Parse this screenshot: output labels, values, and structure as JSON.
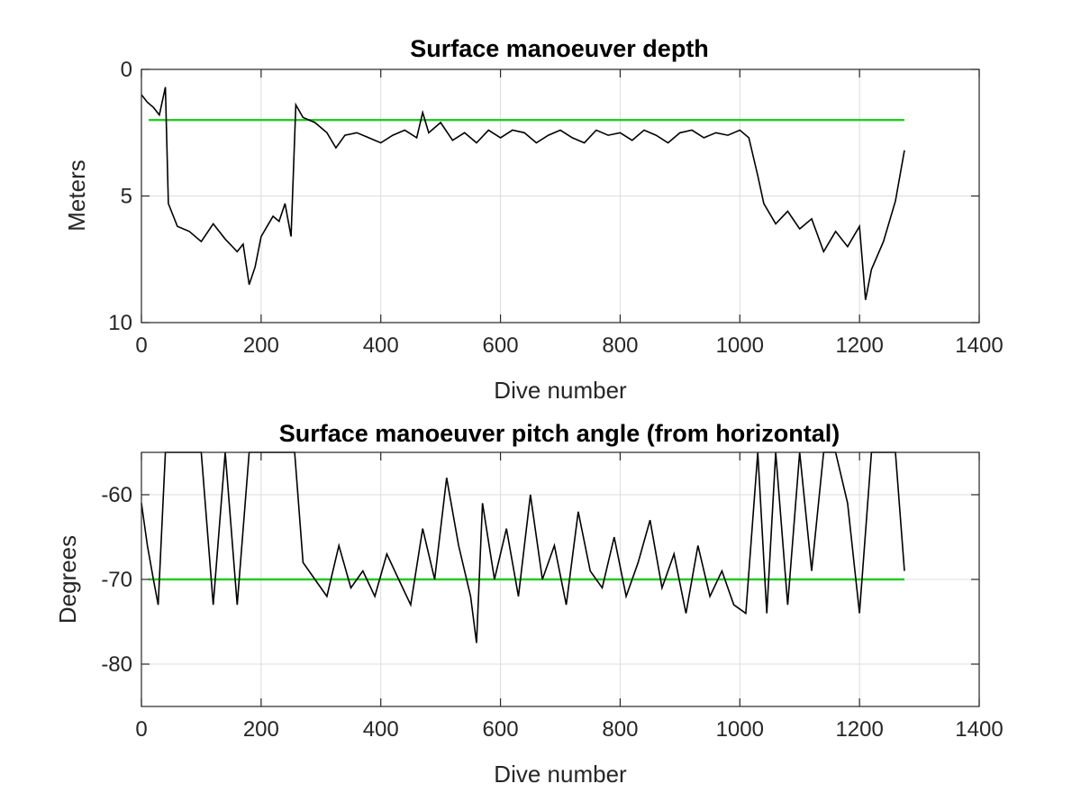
{
  "chart_data": [
    {
      "type": "line",
      "title": "Surface manoeuver depth",
      "xlabel": "Dive number",
      "ylabel": "Meters",
      "xlim": [
        0,
        1400
      ],
      "ylim": [
        0,
        10
      ],
      "y_reversed": true,
      "xticks": [
        0,
        200,
        400,
        600,
        800,
        1000,
        1200,
        1400
      ],
      "yticks": [
        0,
        5,
        10
      ],
      "grid": true,
      "reference_line": {
        "y": 2,
        "color": "#22cc22"
      },
      "series": [
        {
          "color": "#000000",
          "x": [
            0,
            10,
            20,
            30,
            40,
            45,
            60,
            80,
            100,
            120,
            140,
            160,
            170,
            180,
            190,
            200,
            210,
            220,
            230,
            240,
            250,
            258,
            270,
            290,
            310,
            325,
            340,
            360,
            380,
            400,
            420,
            440,
            460,
            470,
            480,
            500,
            520,
            540,
            560,
            580,
            600,
            620,
            640,
            660,
            680,
            700,
            720,
            740,
            760,
            780,
            800,
            820,
            840,
            860,
            880,
            900,
            920,
            940,
            960,
            980,
            1000,
            1015,
            1030,
            1040,
            1060,
            1080,
            1100,
            1120,
            1140,
            1160,
            1180,
            1200,
            1210,
            1220,
            1240,
            1260,
            1275
          ],
          "y": [
            1.0,
            1.3,
            1.5,
            1.8,
            0.7,
            5.3,
            6.2,
            6.4,
            6.8,
            6.1,
            6.7,
            7.2,
            6.9,
            8.5,
            7.8,
            6.6,
            6.2,
            5.8,
            6.0,
            5.3,
            6.6,
            1.4,
            1.9,
            2.1,
            2.5,
            3.1,
            2.6,
            2.5,
            2.7,
            2.9,
            2.6,
            2.4,
            2.7,
            1.7,
            2.5,
            2.1,
            2.8,
            2.5,
            2.9,
            2.4,
            2.7,
            2.4,
            2.5,
            2.9,
            2.6,
            2.4,
            2.7,
            2.9,
            2.4,
            2.6,
            2.5,
            2.8,
            2.4,
            2.6,
            2.9,
            2.5,
            2.4,
            2.7,
            2.5,
            2.6,
            2.4,
            2.7,
            4.2,
            5.3,
            6.1,
            5.6,
            6.3,
            5.9,
            7.2,
            6.4,
            7.0,
            6.2,
            9.1,
            7.9,
            6.8,
            5.2,
            3.2
          ]
        }
      ]
    },
    {
      "type": "line",
      "title": "Surface manoeuver pitch angle (from horizontal)",
      "xlabel": "Dive number",
      "ylabel": "Degrees",
      "xlim": [
        0,
        1400
      ],
      "ylim": [
        -85,
        -55
      ],
      "xticks": [
        0,
        200,
        400,
        600,
        800,
        1000,
        1200,
        1400
      ],
      "yticks": [
        -60,
        -70,
        -80
      ],
      "grid": true,
      "reference_line": {
        "y": -70,
        "color": "#22cc22"
      },
      "series": [
        {
          "color": "#000000",
          "x": [
            0,
            10,
            20,
            28,
            40,
            60,
            80,
            100,
            120,
            140,
            160,
            180,
            200,
            220,
            240,
            256,
            270,
            290,
            310,
            330,
            350,
            370,
            390,
            410,
            430,
            450,
            470,
            490,
            510,
            530,
            550,
            560,
            570,
            590,
            610,
            630,
            650,
            670,
            690,
            710,
            730,
            750,
            770,
            790,
            810,
            830,
            850,
            870,
            890,
            910,
            930,
            950,
            970,
            990,
            1010,
            1030,
            1045,
            1060,
            1080,
            1100,
            1120,
            1140,
            1160,
            1180,
            1200,
            1220,
            1240,
            1260,
            1275
          ],
          "y": [
            -61,
            -66,
            -70,
            -73,
            -55,
            -55,
            -55,
            -55,
            -73,
            -55,
            -73,
            -55,
            -55,
            -55,
            -55,
            -55,
            -68,
            -70,
            -72,
            -66,
            -71,
            -69,
            -72,
            -67,
            -70,
            -73,
            -64,
            -70,
            -58,
            -66,
            -72,
            -77.5,
            -61,
            -70,
            -64,
            -72,
            -60,
            -70,
            -66,
            -73,
            -62,
            -69,
            -71,
            -65,
            -72,
            -68,
            -63,
            -71,
            -67,
            -74,
            -66,
            -72,
            -69,
            -73,
            -74,
            -55,
            -74,
            -55,
            -73,
            -55,
            -69,
            -55,
            -55,
            -61,
            -74,
            -55,
            -55,
            -55,
            -69
          ]
        }
      ]
    }
  ]
}
